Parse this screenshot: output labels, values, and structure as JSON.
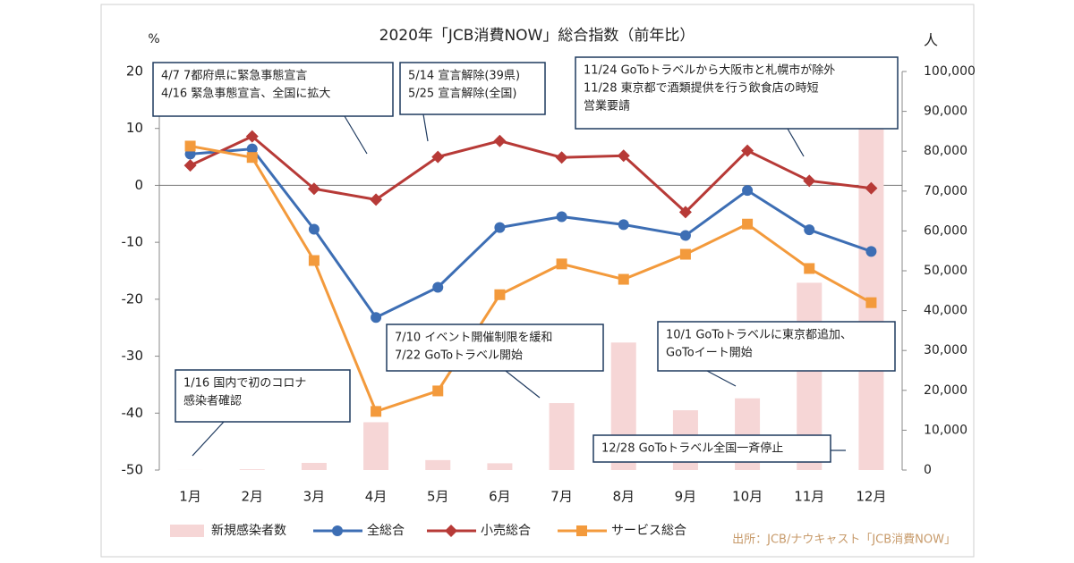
{
  "chart_data": {
    "type": "bar-line",
    "title": "2020年「JCB消費NOW」総合指数（前年比）",
    "y_label": "%",
    "y2_label": "人",
    "categories": [
      "1月",
      "2月",
      "3月",
      "4月",
      "5月",
      "6月",
      "7月",
      "8月",
      "9月",
      "10月",
      "11月",
      "12月"
    ],
    "series": [
      {
        "name": "新規感染者数",
        "type": "bar",
        "axis": "y2",
        "color": "#f6d6d6",
        "values": [
          20,
          200,
          1800,
          12000,
          2500,
          1700,
          16800,
          32000,
          15000,
          18000,
          47000,
          85500
        ]
      },
      {
        "name": "全総合",
        "type": "line",
        "marker": "circle",
        "color": "#3d6eb4",
        "values": [
          5.5,
          6.4,
          -7.7,
          -23.2,
          -17.9,
          -7.4,
          -5.5,
          -6.9,
          -8.8,
          -0.9,
          -7.8,
          -11.6
        ]
      },
      {
        "name": "小売総合",
        "type": "line",
        "marker": "diamond",
        "color": "#b73a37",
        "values": [
          3.5,
          8.6,
          -0.6,
          -2.5,
          5.0,
          7.8,
          4.9,
          5.2,
          -4.7,
          6.1,
          0.8,
          -0.5
        ]
      },
      {
        "name": "サービス総合",
        "type": "line",
        "marker": "square",
        "color": "#f39a3c",
        "values": [
          6.9,
          4.9,
          -13.2,
          -39.7,
          -36.1,
          -19.2,
          -13.8,
          -16.5,
          -12.1,
          -6.8,
          -14.6,
          -20.6
        ]
      }
    ],
    "ylim": [
      -50,
      20
    ],
    "yticks": [
      -50,
      -40,
      -30,
      -20,
      -10,
      0,
      10,
      20
    ],
    "y2lim": [
      0,
      100000
    ],
    "y2ticks": [
      0,
      {
        "value": 10000,
        "label": "10,000"
      },
      {
        "value": 20000,
        "label": "20,000"
      },
      {
        "value": 30000,
        "label": "30,000"
      },
      {
        "value": 40000,
        "label": "40,000"
      },
      {
        "value": 50000,
        "label": "50,000"
      },
      {
        "value": 60000,
        "label": "60,000"
      },
      {
        "value": 70000,
        "label": "70,000"
      },
      {
        "value": 80000,
        "label": "80,000"
      },
      {
        "value": 90000,
        "label": "90,000"
      },
      {
        "value": 100000,
        "label": "100,000"
      }
    ],
    "grid": false,
    "annotations": [
      {
        "lines": [
          "4/7 7都府県に緊急事態宣言",
          "4/16 緊急事態宣言、全国に拡大"
        ]
      },
      {
        "lines": [
          "5/14 宣言解除(39県)",
          "5/25 宣言解除(全国)"
        ]
      },
      {
        "lines": [
          "11/24 GoToトラベルから大阪市と札幌市が除外",
          "11/28 東京都で酒類提供を行う飲食店の時短",
          "営業要請"
        ]
      },
      {
        "lines": [
          "7/10 イベント開催制限を緩和",
          "7/22 GoToトラベル開始"
        ]
      },
      {
        "lines": [
          "10/1 GoToトラベルに東京都追加、",
          "GoToイート開始"
        ]
      },
      {
        "lines": [
          "1/16 国内で初のコロナ",
          "感染者確認"
        ]
      },
      {
        "lines": [
          "12/28 GoToトラベル全国一斉停止"
        ]
      }
    ],
    "source": "出所：JCB/ナウキャスト「JCB消費NOW」"
  }
}
